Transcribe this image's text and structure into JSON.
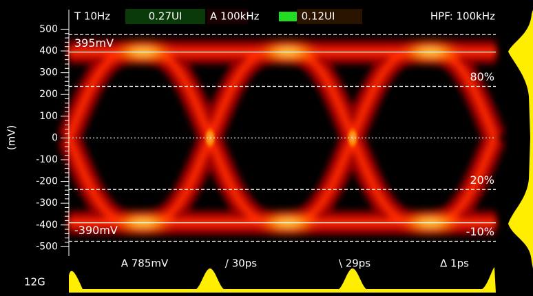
{
  "chart_data": {
    "type": "eye",
    "ylabel": "(mV)",
    "ylim": [
      -540,
      590
    ],
    "yticks": [
      -500,
      -400,
      -300,
      -200,
      -100,
      0,
      100,
      200,
      300,
      400,
      500
    ],
    "reference_lines": [
      {
        "value": 475,
        "style": "dashed"
      },
      {
        "value": 395,
        "style": "solid",
        "label": "395mV"
      },
      {
        "value": 237,
        "style": "dashed",
        "label": "80%"
      },
      {
        "value": 0,
        "style": "dotted"
      },
      {
        "value": -237,
        "style": "dashed",
        "label": "20%"
      },
      {
        "value": -390,
        "style": "solid",
        "label": "-390mV"
      },
      {
        "value": -475,
        "style": "dashed",
        "label": "-10%"
      }
    ],
    "readouts_top": [
      "T 10Hz",
      "0.27UI",
      "A 100kHz",
      "0.12UI",
      "HPF: 100kHz"
    ],
    "readouts_bottom": [
      "A 785mV",
      "/ 30ps",
      "\\ 29ps",
      "Δ 1ps"
    ],
    "rate": "12G"
  }
}
